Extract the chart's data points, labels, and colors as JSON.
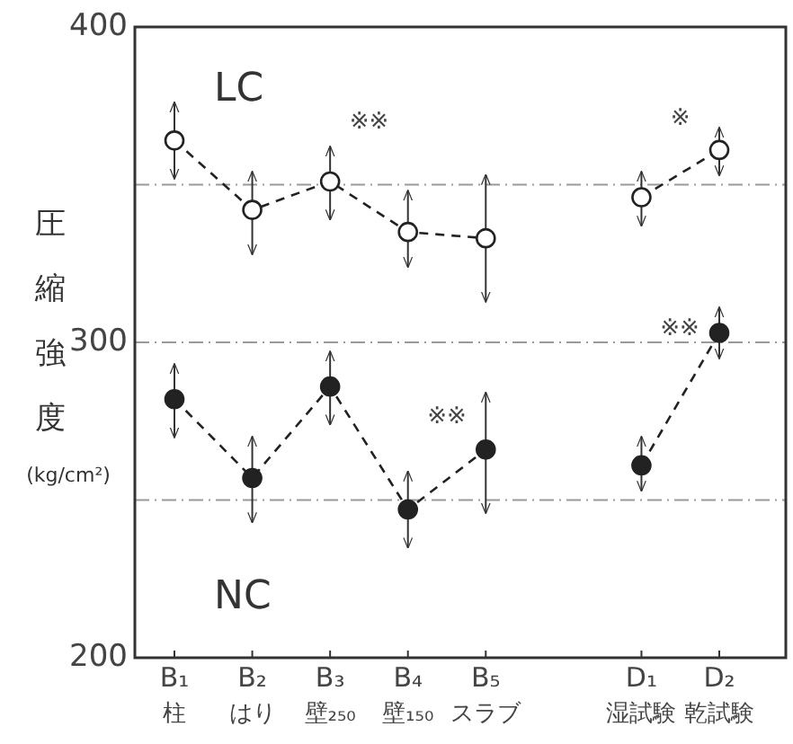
{
  "chart_data": {
    "type": "line",
    "ylabel": "圧縮強度 (kg/cm²)",
    "categories": [
      "B₁\n柱",
      "B₂\nはり",
      "B₃\n壁₂₅₀",
      "B₄\n壁₁₅₀",
      "B₅\nスラブ",
      null,
      "D₁\n湿試験",
      "D₂\n乾試験"
    ],
    "series": [
      {
        "name": "LC",
        "color": "#222222",
        "values": [
          364,
          342,
          351,
          335,
          333,
          null,
          346,
          361
        ],
        "errors": [
          [
            352,
            376
          ],
          [
            328,
            354
          ],
          [
            339,
            362
          ],
          [
            324,
            348
          ],
          [
            313,
            353
          ],
          null,
          [
            337,
            354
          ],
          [
            353,
            368
          ]
        ]
      },
      {
        "name": "NC",
        "color": "#222222",
        "values": [
          282,
          257,
          286,
          247,
          266,
          null,
          261,
          303
        ],
        "errors": [
          [
            270,
            293
          ],
          [
            243,
            270
          ],
          [
            274,
            297
          ],
          [
            235,
            259
          ],
          [
            246,
            284
          ],
          null,
          [
            253,
            270
          ],
          [
            295,
            311
          ]
        ]
      }
    ],
    "ylim": [
      200,
      400
    ],
    "yticks": [
      200,
      {
        "value": 250,
        "label": null
      },
      300,
      {
        "value": 350,
        "label": null
      },
      400
    ],
    "grid": "y",
    "marker": "circle",
    "line_style": "dashed",
    "annotations": [
      "※※",
      "※",
      "※※",
      "※※"
    ]
  }
}
